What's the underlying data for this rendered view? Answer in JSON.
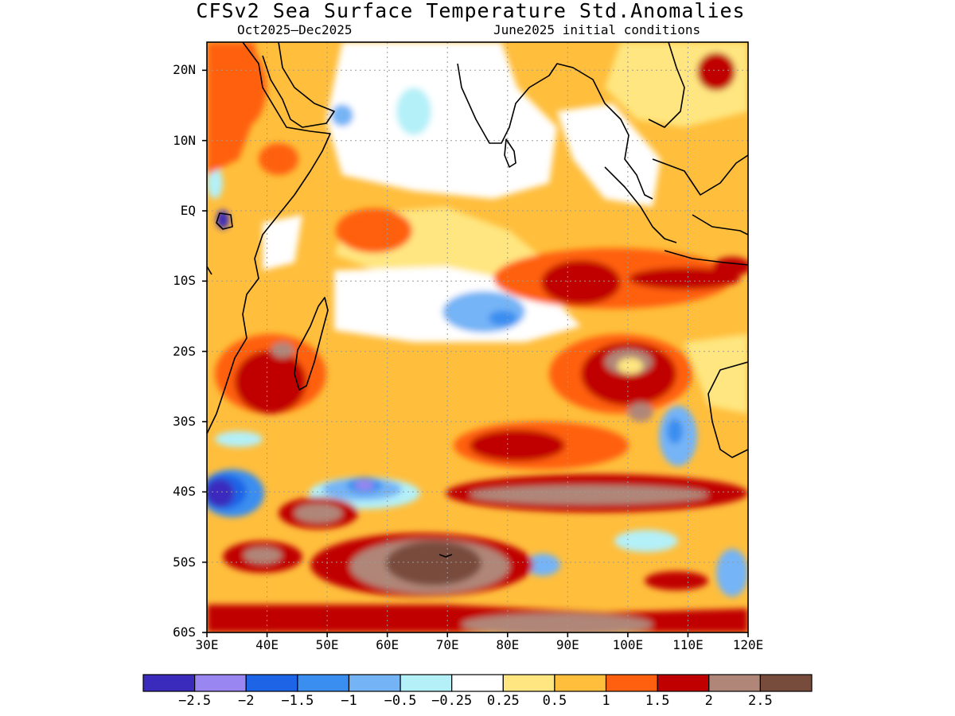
{
  "title": "CFSv2 Sea Surface Temperature Std.Anomalies",
  "period": "Oct2025–Dec2025",
  "initial_conditions": "June2025 initial conditions",
  "map": {
    "lon_range": [
      30,
      120
    ],
    "lat_range": [
      -60,
      24
    ],
    "lat_ticks": [
      {
        "value": 20,
        "label": "20N"
      },
      {
        "value": 10,
        "label": "10N"
      },
      {
        "value": 0,
        "label": "EQ"
      },
      {
        "value": -10,
        "label": "10S"
      },
      {
        "value": -20,
        "label": "20S"
      },
      {
        "value": -30,
        "label": "30S"
      },
      {
        "value": -40,
        "label": "40S"
      },
      {
        "value": -50,
        "label": "50S"
      },
      {
        "value": -60,
        "label": "60S"
      }
    ],
    "lon_ticks": [
      {
        "value": 30,
        "label": "30E"
      },
      {
        "value": 40,
        "label": "40E"
      },
      {
        "value": 50,
        "label": "50E"
      },
      {
        "value": 60,
        "label": "60E"
      },
      {
        "value": 70,
        "label": "70E"
      },
      {
        "value": 80,
        "label": "80E"
      },
      {
        "value": 90,
        "label": "90E"
      },
      {
        "value": 100,
        "label": "100E"
      },
      {
        "value": 110,
        "label": "110E"
      },
      {
        "value": 120,
        "label": "120E"
      }
    ],
    "grid": "dotted",
    "coastlines": true
  },
  "colorbar": {
    "colors": [
      "#3b2bbd",
      "#9a86f0",
      "#1e64e6",
      "#3a8ef0",
      "#74b4f6",
      "#b4f0f8",
      "#ffffff",
      "#ffe680",
      "#ffbe3c",
      "#ff6010",
      "#c00000",
      "#b08678",
      "#784c3c"
    ],
    "labels": [
      "−2.5",
      "−2",
      "−1.5",
      "−1",
      "−0.5",
      "−0.25",
      "0.25",
      "0.5",
      "1",
      "1.5",
      "2",
      "2.5"
    ]
  }
}
